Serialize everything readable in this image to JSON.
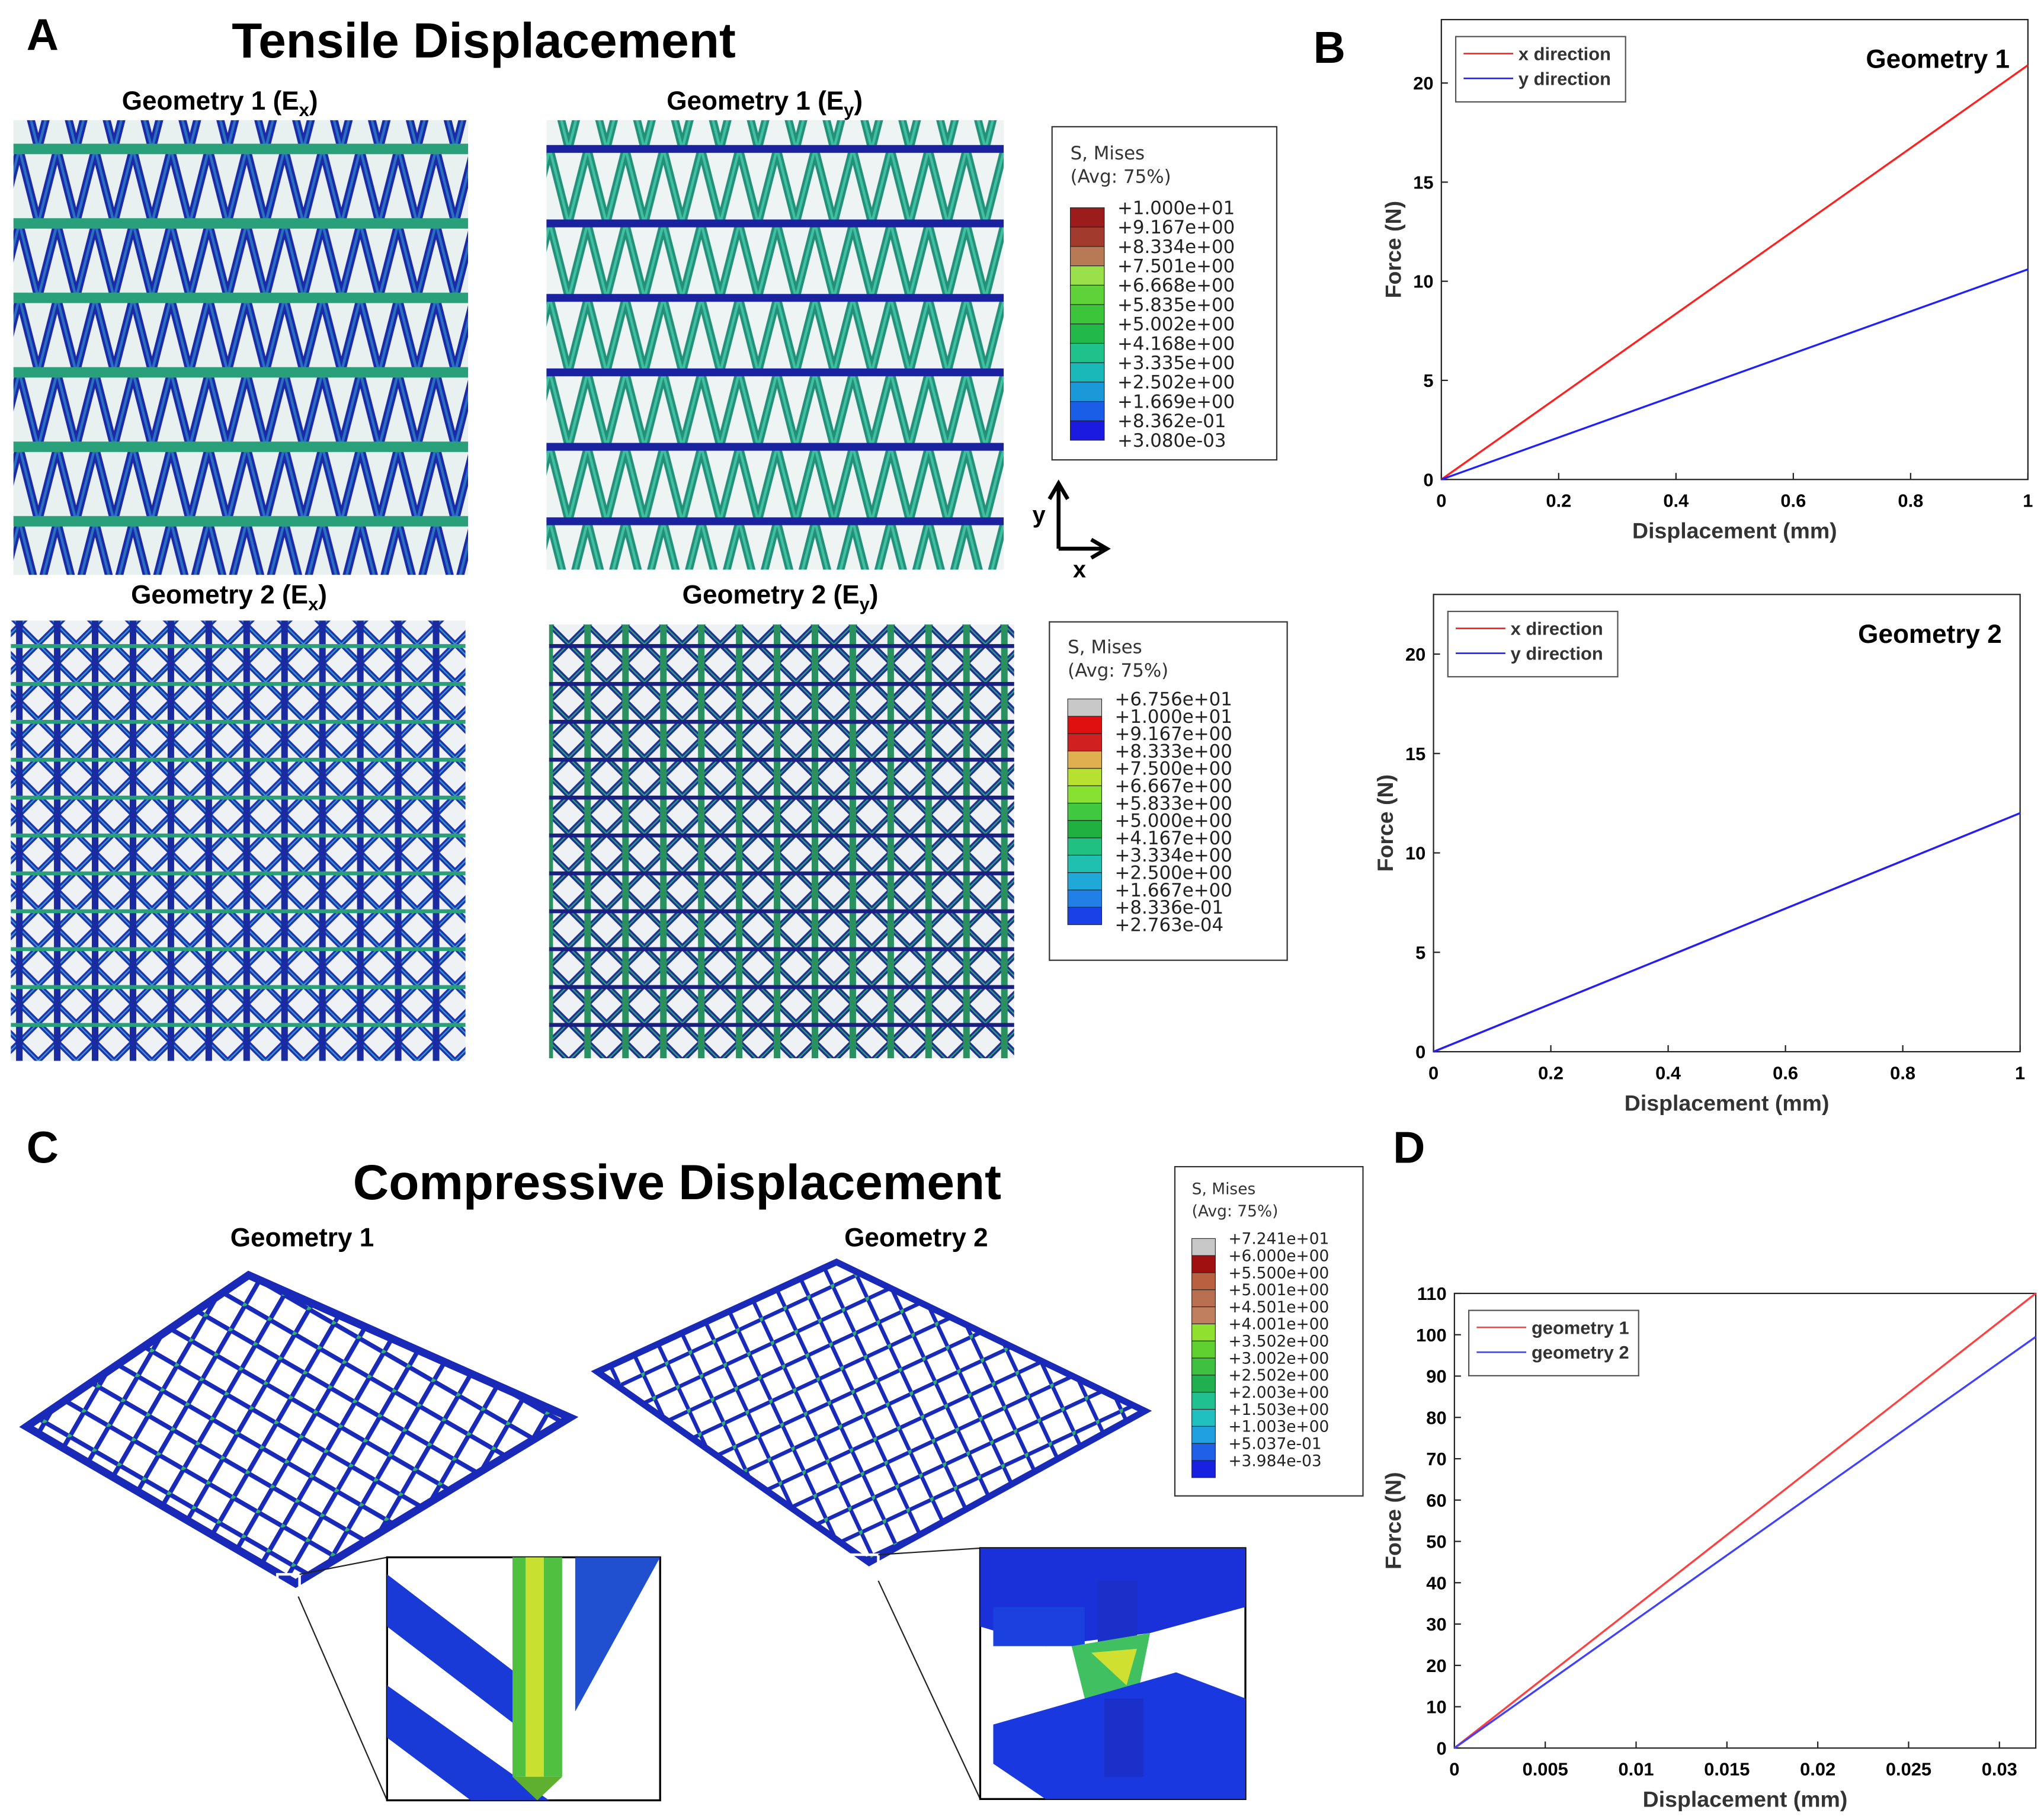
{
  "figure": {
    "panel_labels": [
      "A",
      "B",
      "C",
      "D"
    ],
    "tensile_title": "Tensile Displacement",
    "compressive_title": "Compressive Displacement",
    "tensile_panels": [
      {
        "text": "Geometry 1 (E",
        "sub": "x",
        "end": ")"
      },
      {
        "text": "Geometry 1 (E",
        "sub": "y",
        "end": ")"
      },
      {
        "text": "Geometry 2 (E",
        "sub": "x",
        "end": ")"
      },
      {
        "text": "Geometry 2 (E",
        "sub": "y",
        "end": ")"
      }
    ],
    "compressive_panels": [
      "Geometry 1",
      "Geometry 2"
    ],
    "axis_labels": [
      "y",
      "x"
    ]
  },
  "colorbars": [
    {
      "title": "S, Mises",
      "subtitle": "(Avg: 75%)",
      "labels": [
        "+1.000e+01",
        "+9.167e+00",
        "+8.334e+00",
        "+7.501e+00",
        "+6.668e+00",
        "+5.835e+00",
        "+5.002e+00",
        "+4.168e+00",
        "+3.335e+00",
        "+2.502e+00",
        "+1.669e+00",
        "+8.362e-01",
        "+3.080e-03"
      ],
      "colors": [
        "#9c1c1c",
        "#a33a2e",
        "#b77a55",
        "#99e04a",
        "#5fd23a",
        "#3cc43a",
        "#22b84a",
        "#1fc28a",
        "#1ab8b8",
        "#1a98d8",
        "#1a5ee8",
        "#1a1ae0"
      ]
    },
    {
      "title": "S, Mises",
      "subtitle": "(Avg: 75%)",
      "labels": [
        "+6.756e+01",
        "+1.000e+01",
        "+9.167e+00",
        "+8.333e+00",
        "+7.500e+00",
        "+6.667e+00",
        "+5.833e+00",
        "+5.000e+00",
        "+4.167e+00",
        "+3.334e+00",
        "+2.500e+00",
        "+1.667e+00",
        "+8.336e-01",
        "+2.763e-04"
      ],
      "colors": [
        "#c8c8c8",
        "#e01010",
        "#d02020",
        "#e0b050",
        "#b8e030",
        "#88e030",
        "#40c840",
        "#20b040",
        "#20c080",
        "#20c0b0",
        "#20a8d8",
        "#2080e8",
        "#1a40e8"
      ]
    },
    {
      "title": "S, Mises",
      "subtitle": "(Avg: 75%)",
      "labels": [
        "+7.241e+01",
        "+6.000e+00",
        "+5.500e+00",
        "+5.001e+00",
        "+4.501e+00",
        "+4.001e+00",
        "+3.502e+00",
        "+3.002e+00",
        "+2.502e+00",
        "+2.003e+00",
        "+1.503e+00",
        "+1.003e+00",
        "+5.037e-01",
        "+3.984e-03"
      ],
      "colors": [
        "#c8c8c8",
        "#a01010",
        "#b86040",
        "#b87050",
        "#c08060",
        "#90e030",
        "#60d030",
        "#40c040",
        "#20b050",
        "#20c090",
        "#20c0c0",
        "#20a0e0",
        "#2060e8",
        "#1a20e0"
      ]
    }
  ],
  "chart_data": [
    {
      "type": "line",
      "annotation": "Geometry 1",
      "xlabel": "Displacement (mm)",
      "ylabel": "Force (N)",
      "x": [
        0,
        1
      ],
      "xlim": [
        0,
        1
      ],
      "ylim": [
        0,
        23.2
      ],
      "xticks": [
        0,
        0.2,
        0.4,
        0.6,
        0.8,
        1
      ],
      "yticks": [
        0,
        5,
        10,
        15,
        20
      ],
      "legend": "upper left",
      "series": [
        {
          "name": "x direction",
          "color": "#ff2020",
          "values": [
            0,
            20.9
          ]
        },
        {
          "name": "y direction",
          "color": "#2020ff",
          "values": [
            0,
            10.6
          ]
        }
      ]
    },
    {
      "type": "line",
      "annotation": "Geometry 2",
      "xlabel": "Displacement (mm)",
      "ylabel": "Force (N)",
      "x": [
        0,
        1
      ],
      "xlim": [
        0,
        1
      ],
      "ylim": [
        0,
        23
      ],
      "xticks": [
        0,
        0.2,
        0.4,
        0.6,
        0.8,
        1
      ],
      "yticks": [
        0,
        5,
        10,
        15,
        20
      ],
      "legend": "upper left",
      "series": [
        {
          "name": "x direction",
          "color": "#ff2020",
          "values": [
            0,
            12.0
          ]
        },
        {
          "name": "y direction",
          "color": "#2020ff",
          "values": [
            0,
            12.0
          ]
        }
      ]
    },
    {
      "type": "line",
      "xlabel": "Displacement (mm)",
      "ylabel": "Force (N)",
      "x": [
        0,
        0.032
      ],
      "xlim": [
        0,
        0.032
      ],
      "ylim": [
        0,
        110
      ],
      "xticks": [
        0,
        0.005,
        0.01,
        0.015,
        0.02,
        0.025,
        0.03
      ],
      "yticks": [
        0,
        10,
        20,
        30,
        40,
        50,
        60,
        70,
        80,
        90,
        100,
        110
      ],
      "legend": "upper left",
      "series": [
        {
          "name": "geometry 1",
          "color": "#ff4040",
          "values": [
            0,
            110
          ]
        },
        {
          "name": "geometry 2",
          "color": "#4040ff",
          "values": [
            0,
            99.5
          ]
        }
      ]
    }
  ]
}
